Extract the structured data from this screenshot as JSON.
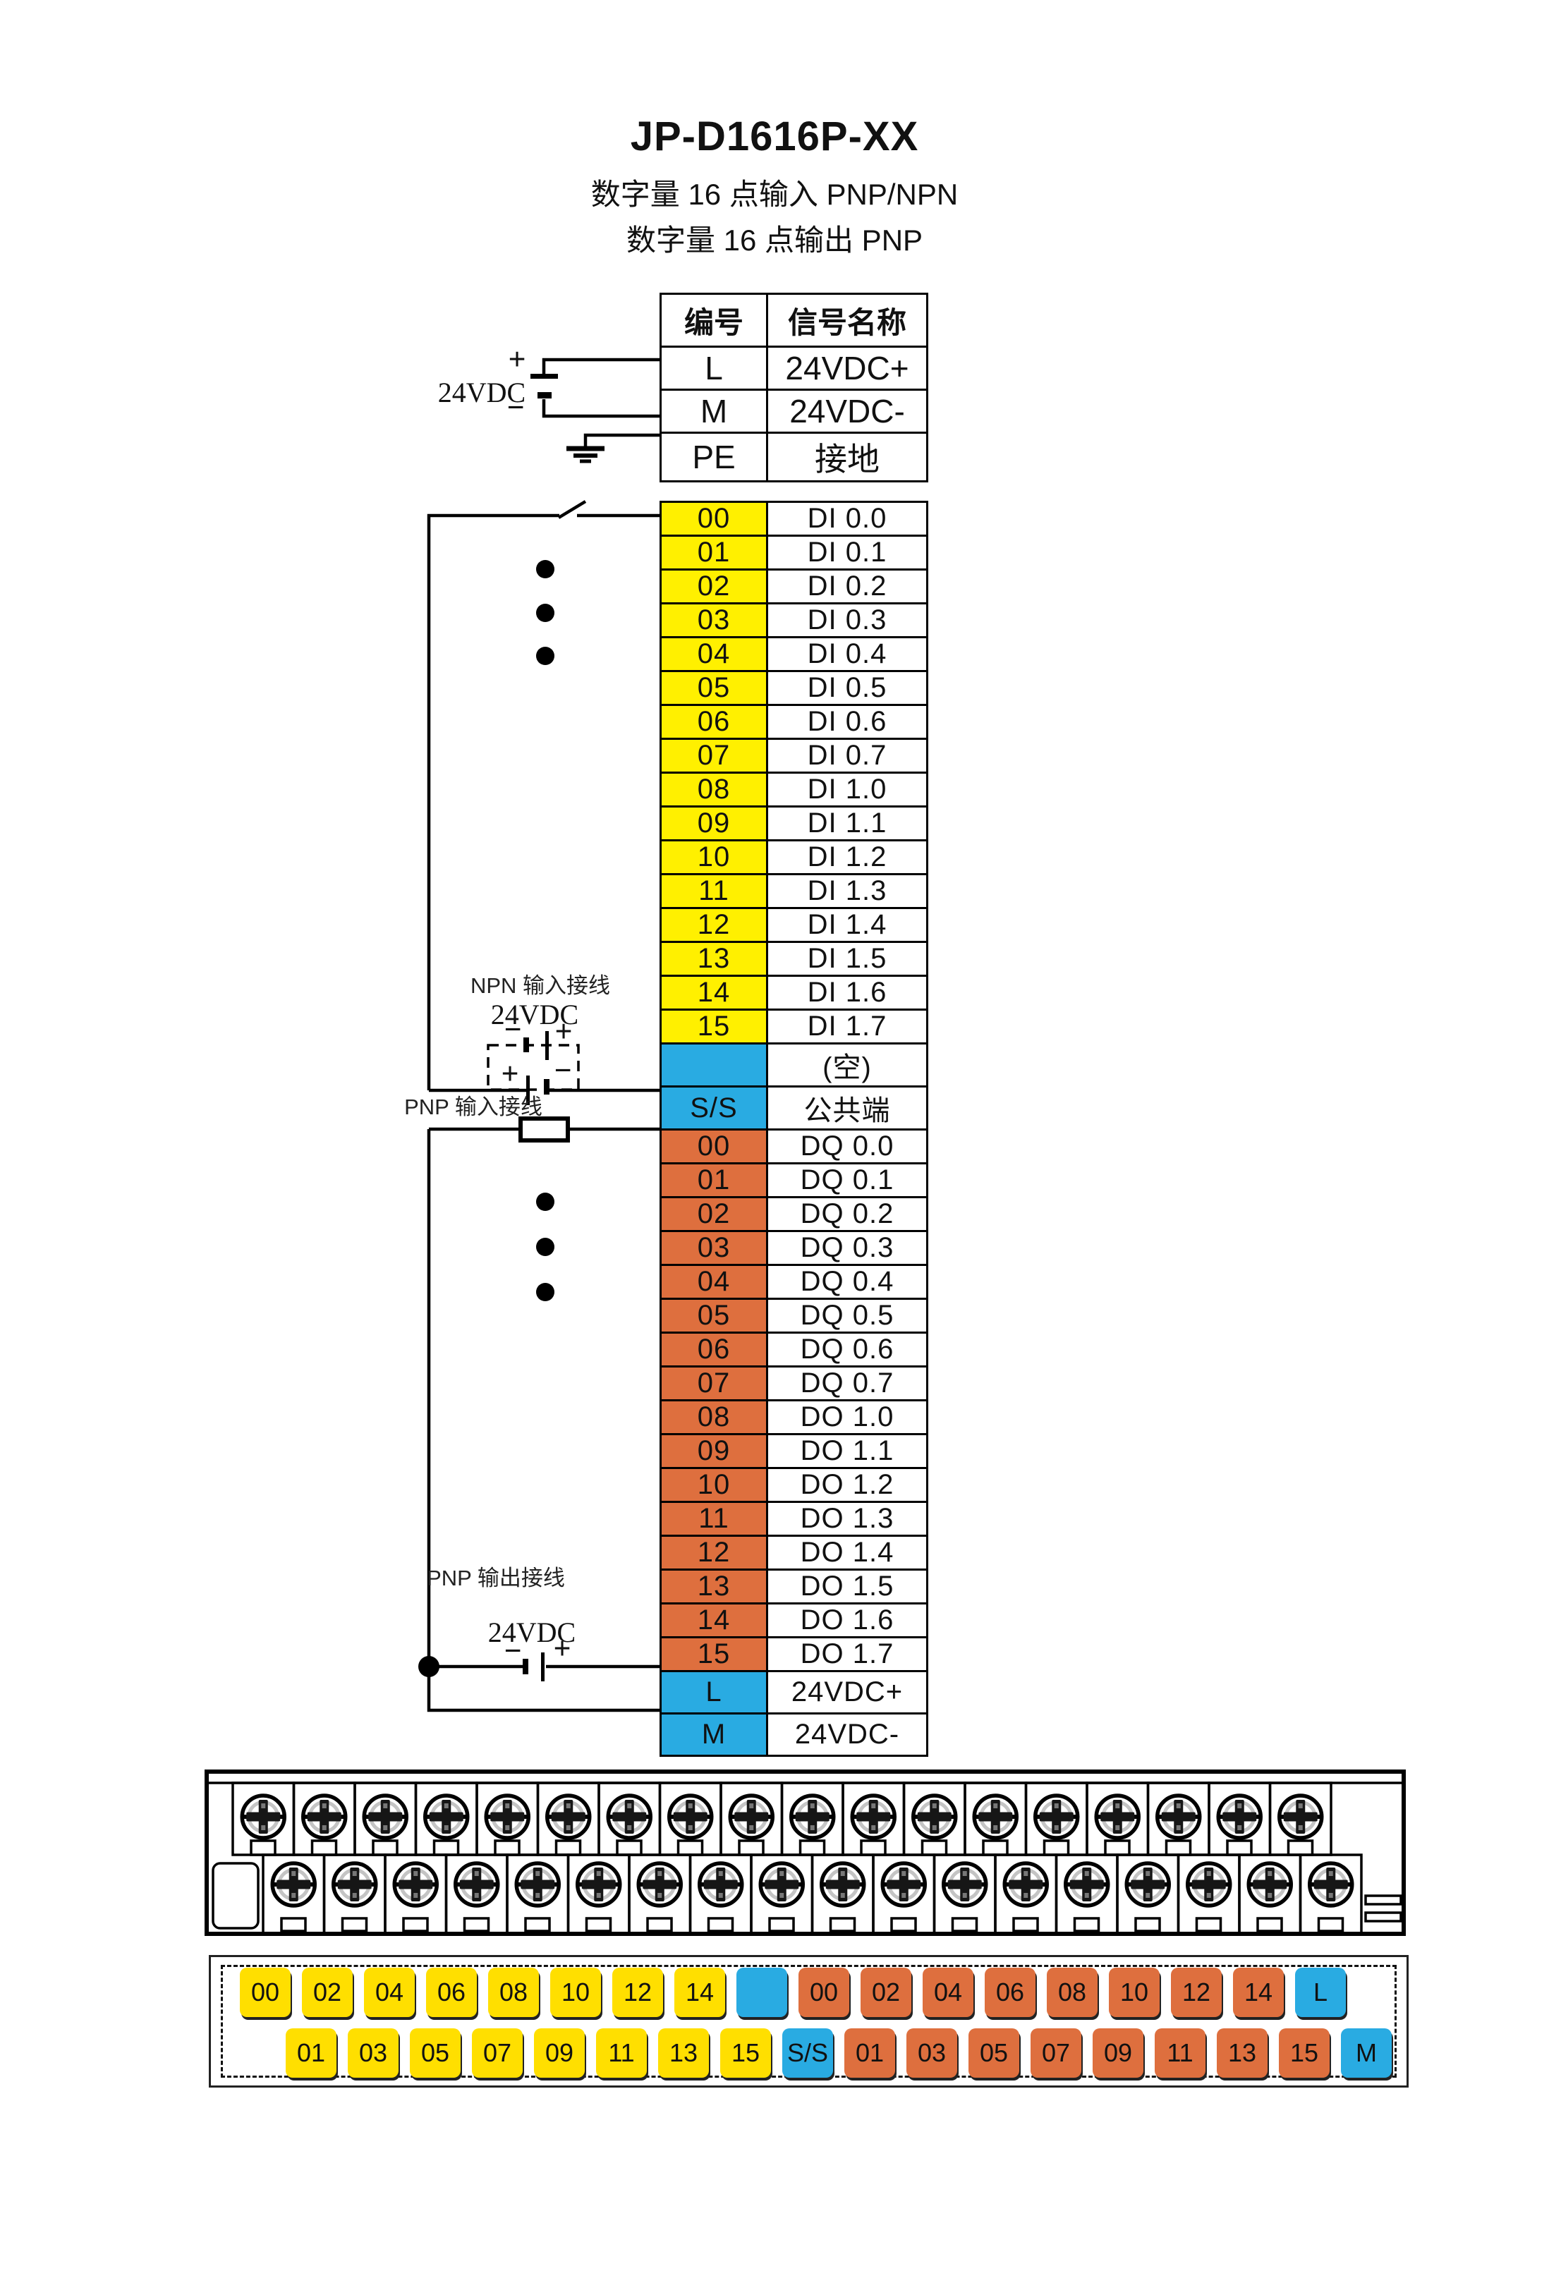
{
  "header": {
    "title": "JP-D1616P-XX",
    "subtitle1": "数字量 16 点输入  PNP/NPN",
    "subtitle2": "数字量 16 点输出  PNP"
  },
  "power_table": {
    "col1": "编号",
    "col2": "信号名称",
    "rows": [
      {
        "no": "L",
        "name": "24VDC+"
      },
      {
        "no": "M",
        "name": "24VDC-"
      },
      {
        "no": "PE",
        "name": "接地"
      }
    ]
  },
  "io_table": {
    "rows": [
      {
        "no": "00",
        "name": "DI 0.0",
        "c": "y"
      },
      {
        "no": "01",
        "name": "DI 0.1",
        "c": "y"
      },
      {
        "no": "02",
        "name": "DI 0.2",
        "c": "y"
      },
      {
        "no": "03",
        "name": "DI 0.3",
        "c": "y"
      },
      {
        "no": "04",
        "name": "DI 0.4",
        "c": "y"
      },
      {
        "no": "05",
        "name": "DI 0.5",
        "c": "y"
      },
      {
        "no": "06",
        "name": "DI 0.6",
        "c": "y"
      },
      {
        "no": "07",
        "name": "DI 0.7",
        "c": "y"
      },
      {
        "no": "08",
        "name": "DI 1.0",
        "c": "y"
      },
      {
        "no": "09",
        "name": "DI 1.1",
        "c": "y"
      },
      {
        "no": "10",
        "name": "DI 1.2",
        "c": "y"
      },
      {
        "no": "11",
        "name": "DI 1.3",
        "c": "y"
      },
      {
        "no": "12",
        "name": "DI 1.4",
        "c": "y"
      },
      {
        "no": "13",
        "name": "DI 1.5",
        "c": "y"
      },
      {
        "no": "14",
        "name": "DI 1.6",
        "c": "y"
      },
      {
        "no": "15",
        "name": "DI 1.7",
        "c": "y"
      },
      {
        "no": "",
        "name": "(空)",
        "c": "b"
      },
      {
        "no": "S/S",
        "name": "公共端",
        "c": "b"
      },
      {
        "no": "00",
        "name": "DQ 0.0",
        "c": "o"
      },
      {
        "no": "01",
        "name": "DQ 0.1",
        "c": "o"
      },
      {
        "no": "02",
        "name": "DQ 0.2",
        "c": "o"
      },
      {
        "no": "03",
        "name": "DQ 0.3",
        "c": "o"
      },
      {
        "no": "04",
        "name": "DQ 0.4",
        "c": "o"
      },
      {
        "no": "05",
        "name": "DQ 0.5",
        "c": "o"
      },
      {
        "no": "06",
        "name": "DQ 0.6",
        "c": "o"
      },
      {
        "no": "07",
        "name": "DQ 0.7",
        "c": "o"
      },
      {
        "no": "08",
        "name": "DO 1.0",
        "c": "o"
      },
      {
        "no": "09",
        "name": "DO 1.1",
        "c": "o"
      },
      {
        "no": "10",
        "name": "DO 1.2",
        "c": "o"
      },
      {
        "no": "11",
        "name": "DO 1.3",
        "c": "o"
      },
      {
        "no": "12",
        "name": "DO 1.4",
        "c": "o"
      },
      {
        "no": "13",
        "name": "DO 1.5",
        "c": "o"
      },
      {
        "no": "14",
        "name": "DO 1.6",
        "c": "o"
      },
      {
        "no": "15",
        "name": "DO 1.7",
        "c": "o"
      },
      {
        "no": "L",
        "name": "24VDC+",
        "c": "b"
      },
      {
        "no": "M",
        "name": "24VDC-",
        "c": "b"
      }
    ]
  },
  "wiring": {
    "supply_label": "24VDC",
    "npn_label": "NPN 输入接线",
    "pnp_in_label": "PNP 输入接线",
    "pnp_out_label": "PNP 输出接线",
    "plus": "+",
    "minus": "−"
  },
  "colors": {
    "yellow": "#fff000",
    "yellow_chip": "#ffdf00",
    "blue": "#29abe2",
    "orange": "#de6f3e"
  },
  "terminal_block": {
    "top_screws": 18,
    "bottom_screws": 18
  },
  "legend": {
    "top_row": [
      {
        "label": "00",
        "c": "y"
      },
      {
        "label": "02",
        "c": "y"
      },
      {
        "label": "04",
        "c": "y"
      },
      {
        "label": "06",
        "c": "y"
      },
      {
        "label": "08",
        "c": "y"
      },
      {
        "label": "10",
        "c": "y"
      },
      {
        "label": "12",
        "c": "y"
      },
      {
        "label": "14",
        "c": "y"
      },
      {
        "label": "",
        "c": "b"
      },
      {
        "label": "00",
        "c": "o"
      },
      {
        "label": "02",
        "c": "o"
      },
      {
        "label": "04",
        "c": "o"
      },
      {
        "label": "06",
        "c": "o"
      },
      {
        "label": "08",
        "c": "o"
      },
      {
        "label": "10",
        "c": "o"
      },
      {
        "label": "12",
        "c": "o"
      },
      {
        "label": "14",
        "c": "o"
      },
      {
        "label": "L",
        "c": "b"
      }
    ],
    "bottom_row": [
      {
        "label": "01",
        "c": "y"
      },
      {
        "label": "03",
        "c": "y"
      },
      {
        "label": "05",
        "c": "y"
      },
      {
        "label": "07",
        "c": "y"
      },
      {
        "label": "09",
        "c": "y"
      },
      {
        "label": "11",
        "c": "y"
      },
      {
        "label": "13",
        "c": "y"
      },
      {
        "label": "15",
        "c": "y"
      },
      {
        "label": "S/S",
        "c": "b"
      },
      {
        "label": "01",
        "c": "o"
      },
      {
        "label": "03",
        "c": "o"
      },
      {
        "label": "05",
        "c": "o"
      },
      {
        "label": "07",
        "c": "o"
      },
      {
        "label": "09",
        "c": "o"
      },
      {
        "label": "11",
        "c": "o"
      },
      {
        "label": "13",
        "c": "o"
      },
      {
        "label": "15",
        "c": "o"
      },
      {
        "label": "M",
        "c": "b"
      }
    ]
  }
}
